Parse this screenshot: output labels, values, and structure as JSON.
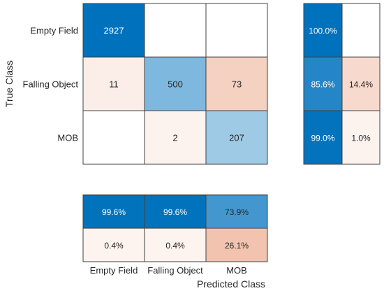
{
  "chart_data": {
    "type": "heatmap",
    "title": "",
    "xlabel": "Predicted Class",
    "ylabel": "True Class",
    "classes": [
      "Empty Field",
      "Falling Object",
      "MOB"
    ],
    "confusion_matrix": [
      [
        2927,
        null,
        null
      ],
      [
        11,
        500,
        73
      ],
      [
        null,
        2,
        207
      ]
    ],
    "row_summary": {
      "correct": [
        "100.0%",
        "85.6%",
        "99.0%"
      ],
      "incorrect": [
        "",
        "14.4%",
        "1.0%"
      ]
    },
    "column_summary": {
      "correct": [
        "99.6%",
        "99.6%",
        "73.9%"
      ],
      "incorrect": [
        "0.4%",
        "0.4%",
        "26.1%"
      ]
    }
  }
}
